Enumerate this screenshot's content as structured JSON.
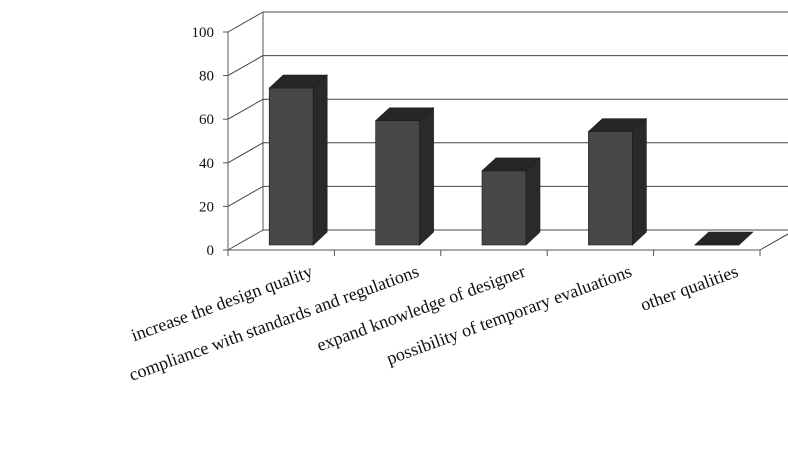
{
  "chart_data": {
    "type": "bar",
    "title": "",
    "xlabel": "",
    "ylabel": "",
    "ylim": [
      0,
      100
    ],
    "yticks": [
      0,
      20,
      40,
      60,
      80,
      100
    ],
    "grid": true,
    "three_d": true,
    "categories": [
      "increase the design quality",
      "compliance with standards and regulations",
      "expand knowledge of designer",
      "possibility of temporary evaluations",
      "other qualities"
    ],
    "values": [
      72,
      57,
      34,
      52,
      0
    ],
    "colors": {
      "bar_front": "#474747",
      "bar_side": "#2a2a2a",
      "bar_top": "#262626",
      "gridline": "#444444",
      "axis": "#555555"
    }
  }
}
